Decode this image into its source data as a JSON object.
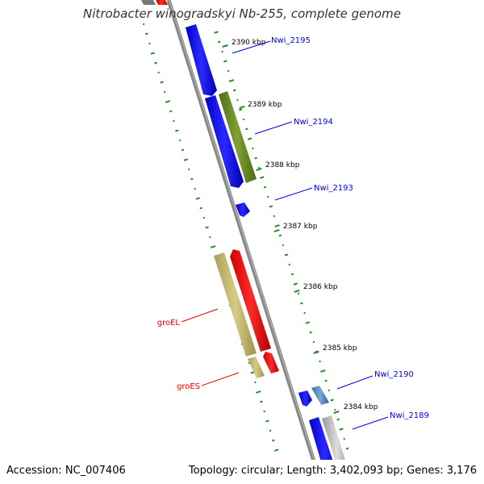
{
  "title": "Nitrobacter winogradskyi Nb-255, complete genome",
  "footer": {
    "accession": "Accession: NC_007406",
    "summary": "Topology: circular; Length: 3,402,093 bp; Genes: 3,176"
  },
  "scale": [
    {
      "label": "2390 kbp"
    },
    {
      "label": "2389 kbp"
    },
    {
      "label": "2388 kbp"
    },
    {
      "label": "2387 kbp"
    },
    {
      "label": "2386 kbp"
    },
    {
      "label": "2385 kbp"
    },
    {
      "label": "2384 kbp"
    }
  ],
  "features": [
    {
      "label": "Nwi_2195",
      "color": "#1010ee"
    },
    {
      "label": "Nwi_2194",
      "color": "#1010ee"
    },
    {
      "label": "Nwi_2193",
      "color": "#1010ee"
    },
    {
      "label": "groEL",
      "color": "#dd1111"
    },
    {
      "label": "groES",
      "color": "#dd1111"
    },
    {
      "label": "Nwi_2190",
      "color": "#1010ee"
    },
    {
      "label": "Nwi_2189",
      "color": "#1010ee"
    }
  ],
  "colors": {
    "cds_forward": "#1010ee",
    "cds_reverse": "#ee1111",
    "gene_olive": "#6b8e23",
    "gene_khaki": "#bdb76b",
    "backbone": "#888888",
    "gc_dots": "#228b22"
  }
}
